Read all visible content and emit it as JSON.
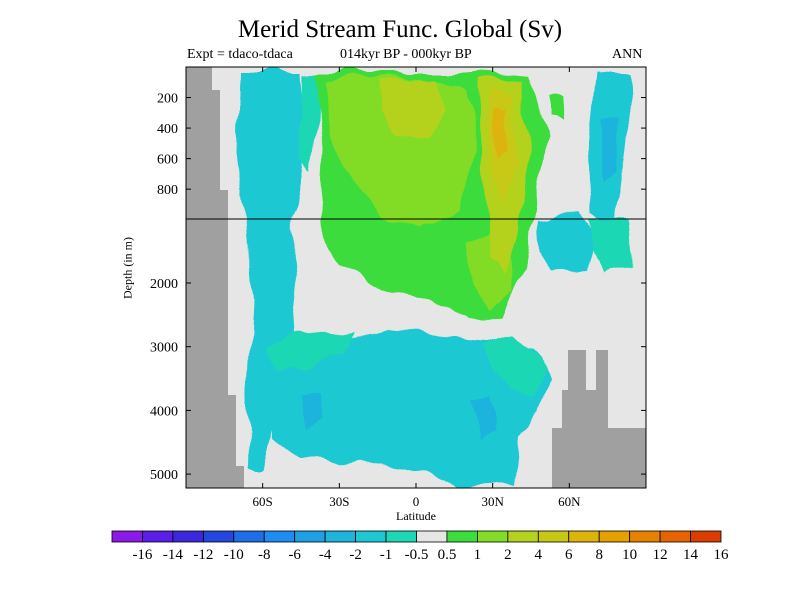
{
  "title": "Merid Stream Func. Global (Sv)",
  "subtitle_left": "Expt = tdaco-tdaca",
  "subtitle_center": "014kyr BP - 000kyr BP",
  "subtitle_right": "ANN",
  "chart_data": {
    "type": "heatmap",
    "title": "Merid Stream Func. Global (Sv)",
    "xlabel": "Latitude",
    "ylabel": "Depth (in m)",
    "x_ticks": [
      {
        "value": -60,
        "label": "60S"
      },
      {
        "value": -30,
        "label": "30S"
      },
      {
        "value": 0,
        "label": "0"
      },
      {
        "value": 30,
        "label": "30N"
      },
      {
        "value": 60,
        "label": "60N"
      }
    ],
    "y_ticks_upper": [
      {
        "value": 200,
        "label": "200"
      },
      {
        "value": 400,
        "label": "400"
      },
      {
        "value": 600,
        "label": "600"
      },
      {
        "value": 800,
        "label": "800"
      }
    ],
    "y_ticks_lower": [
      {
        "value": 2000,
        "label": "2000"
      },
      {
        "value": 3000,
        "label": "3000"
      },
      {
        "value": 4000,
        "label": "4000"
      },
      {
        "value": 5000,
        "label": "5000"
      }
    ],
    "xlim": [
      -90,
      90
    ],
    "ylim": [
      5200,
      0
    ],
    "y_axis_break": 1000,
    "colorbar_labels": [
      "-16",
      "-14",
      "-12",
      "-10",
      "-8",
      "-6",
      "-4",
      "-2",
      "-1",
      "-0.5",
      "0.5",
      "1",
      "2",
      "4",
      "6",
      "8",
      "10",
      "12",
      "14",
      "16"
    ],
    "colorbar_colors": [
      "#8a1ae6",
      "#5a1ee6",
      "#3c28dc",
      "#2346dc",
      "#1e6ee6",
      "#1e8cf0",
      "#1ea0e6",
      "#1eb4dc",
      "#1ec8d2",
      "#1ed7b4",
      "#e6e6e6",
      "#3cdc3c",
      "#82dc28",
      "#b4d21e",
      "#c8c814",
      "#dcb40a",
      "#e6a000",
      "#e68200",
      "#e66400",
      "#dc3c00"
    ],
    "undefined_color": "#e6e6e6",
    "land_color": "#a0a0a0",
    "field_note": "anomaly field shown as filled contours"
  }
}
